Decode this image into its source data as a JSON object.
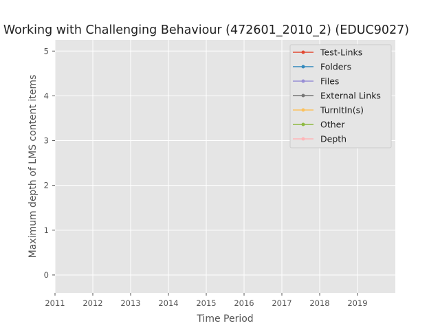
{
  "chart_data": {
    "type": "line",
    "title": "Working with Challenging Behaviour (472601_2010_2) (EDUC9027)",
    "xlabel": "Time Period",
    "ylabel": "Maximum depth of LMS content items",
    "xlim": [
      2011,
      2020
    ],
    "ylim": [
      -0.4,
      5.25
    ],
    "x_ticks": [
      "2011",
      "2012",
      "2013",
      "2014",
      "2015",
      "2016",
      "2017",
      "2018",
      "2019"
    ],
    "y_ticks": [
      "0",
      "1",
      "2",
      "3",
      "4",
      "5"
    ],
    "grid": true,
    "legend_position": "top-right",
    "series": [
      {
        "name": "Test-Links",
        "color": "#E24A33",
        "values": []
      },
      {
        "name": "Folders",
        "color": "#348ABD",
        "values": []
      },
      {
        "name": "Files",
        "color": "#988ED5",
        "values": []
      },
      {
        "name": "External Links",
        "color": "#777777",
        "values": []
      },
      {
        "name": "TurnItIn(s)",
        "color": "#FBC15E",
        "values": []
      },
      {
        "name": "Other",
        "color": "#8EBA42",
        "values": []
      },
      {
        "name": "Depth",
        "color": "#FFB5B8",
        "values": []
      }
    ]
  }
}
